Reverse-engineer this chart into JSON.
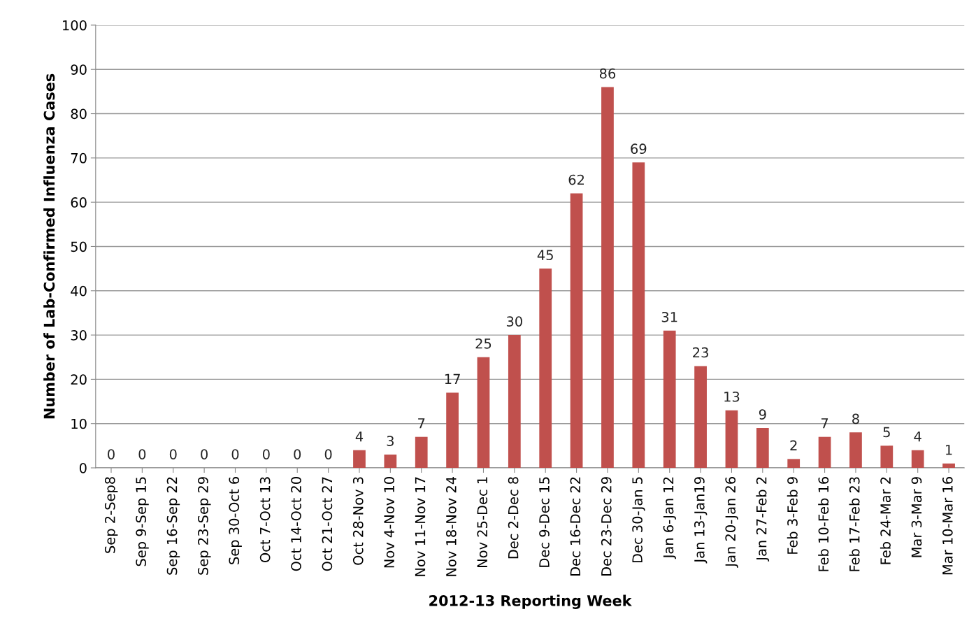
{
  "chart_data": {
    "type": "bar",
    "xlabel": "2012-13 Reporting Week",
    "ylabel": "Number of Lab-Confirmed Influenza Cases",
    "categories": [
      "Sep 2-Sep8",
      "Sep 9-Sep 15",
      "Sep 16-Sep 22",
      "Sep 23-Sep 29",
      "Sep 30-Oct 6",
      "Oct 7-Oct 13",
      "Oct 14-Oct 20",
      "Oct 21-Oct 27",
      "Oct 28-Nov 3",
      "Nov 4-Nov 10",
      "Nov 11-Nov 17",
      "Nov 18-Nov 24",
      "Nov 25-Dec 1",
      "Dec 2-Dec 8",
      "Dec 9-Dec 15",
      "Dec 16-Dec 22",
      "Dec 23-Dec 29",
      "Dec 30-Jan 5",
      "Jan 6-Jan 12",
      "Jan 13-Jan19",
      "Jan 20-Jan 26",
      "Jan 27-Feb 2",
      "Feb 3-Feb 9",
      "Feb 10-Feb 16",
      "Feb 17-Feb 23",
      "Feb 24-Mar 2",
      "Mar 3-Mar 9",
      "Mar 10-Mar 16"
    ],
    "values": [
      0,
      0,
      0,
      0,
      0,
      0,
      0,
      0,
      4,
      3,
      7,
      17,
      25,
      30,
      45,
      62,
      86,
      69,
      31,
      23,
      13,
      9,
      2,
      7,
      8,
      5,
      4,
      1
    ],
    "color": "#c0504d",
    "ylim": [
      0,
      100
    ],
    "yticks": [
      0,
      10,
      20,
      30,
      40,
      50,
      60,
      70,
      80,
      90,
      100
    ],
    "grid": "y",
    "data_labels": true
  }
}
